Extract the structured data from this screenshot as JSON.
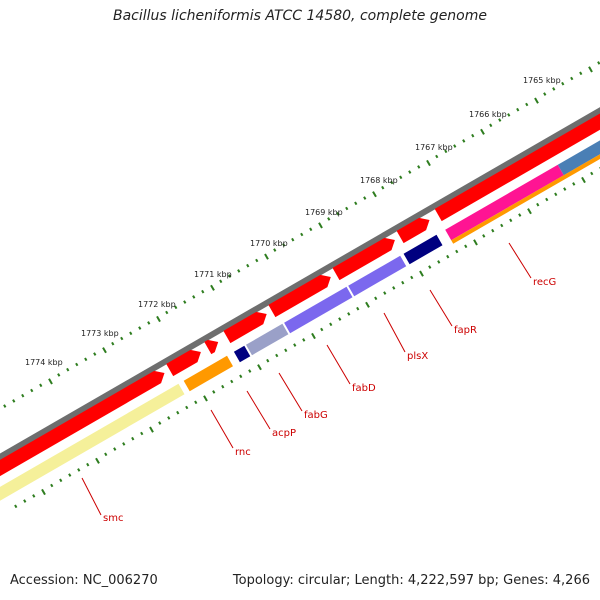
{
  "title": "Bacillus licheniformis ATCC 14580, complete genome",
  "footer": {
    "accession": "Accession: NC_006270",
    "summary": "Topology: circular; Length: 4,222,597 bp; Genes: 4,266"
  },
  "colors": {
    "backbone": "#6e6e6e",
    "forward_cds": "#ff0000",
    "tick": "#2e7d1f",
    "label": "#cc0000",
    "smc_band": "#f5f09a",
    "rnc_band": "#ff9900",
    "acpP_band": "#000080",
    "fabG_band": "#9aa0c8",
    "fabD_band": "#7b68ee",
    "plsX_band": "#7b68ee",
    "fapR_band": "#000080",
    "recG_band": "#ff1493",
    "recG_band_2": "#4a7fb5",
    "bottom_band": "#ff9900"
  },
  "kbp_ticks": [
    "1765 kbp",
    "1766 kbp",
    "1767 kbp",
    "1768 kbp",
    "1769 kbp",
    "1770 kbp",
    "1771 kbp",
    "1772 kbp",
    "1773 kbp",
    "1774 kbp"
  ],
  "genes": [
    "smc",
    "rnc",
    "acpP",
    "fabG",
    "fabD",
    "plsX",
    "fapR",
    "recG"
  ]
}
